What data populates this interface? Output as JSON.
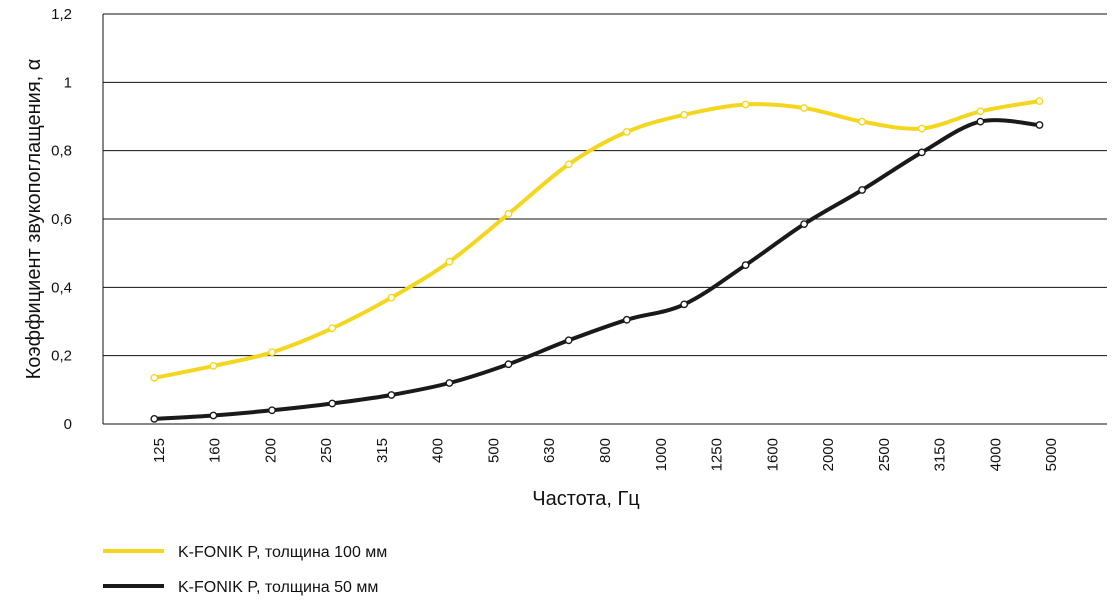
{
  "chart_data": {
    "type": "line",
    "ylabel": "Коэффициент звукопоглащения, α",
    "xlabel": "Частота, Гц",
    "categories": [
      "125",
      "160",
      "200",
      "250",
      "315",
      "400",
      "500",
      "630",
      "800",
      "1000",
      "1250",
      "1600",
      "2000",
      "2500",
      "3150",
      "4000",
      "5000"
    ],
    "ylim": [
      0,
      1.2
    ],
    "yticks": [
      0,
      0.2,
      0.4,
      0.6,
      0.8,
      1,
      1.2
    ],
    "ytick_labels": [
      "0",
      "0,2",
      "0,4",
      "0,6",
      "0,8",
      "1",
      "1,2"
    ],
    "grid": "horizontal",
    "legend_position": "bottom-left",
    "series": [
      {
        "name": "K-FONIK P, толщина 100 мм",
        "color": "#f5d61f",
        "marker_points": [
          {
            "x": 0.92,
            "y": 0.135
          },
          {
            "x": 1.98,
            "y": 0.17
          },
          {
            "x": 3.03,
            "y": 0.21
          },
          {
            "x": 4.11,
            "y": 0.28
          },
          {
            "x": 5.17,
            "y": 0.37
          },
          {
            "x": 6.21,
            "y": 0.475
          },
          {
            "x": 7.27,
            "y": 0.615
          },
          {
            "x": 8.35,
            "y": 0.76
          },
          {
            "x": 9.39,
            "y": 0.855
          },
          {
            "x": 10.42,
            "y": 0.905
          },
          {
            "x": 11.52,
            "y": 0.935
          },
          {
            "x": 12.57,
            "y": 0.925
          },
          {
            "x": 13.61,
            "y": 0.885
          },
          {
            "x": 14.68,
            "y": 0.865
          },
          {
            "x": 15.73,
            "y": 0.915
          },
          {
            "x": 16.79,
            "y": 0.945
          }
        ]
      },
      {
        "name": "K-FONIK P, толщина 50 мм",
        "color": "#1a1a1a",
        "marker_points": [
          {
            "x": 0.92,
            "y": 0.015
          },
          {
            "x": 1.98,
            "y": 0.025
          },
          {
            "x": 3.03,
            "y": 0.04
          },
          {
            "x": 4.11,
            "y": 0.06
          },
          {
            "x": 5.17,
            "y": 0.085
          },
          {
            "x": 6.21,
            "y": 0.12
          },
          {
            "x": 7.27,
            "y": 0.175
          },
          {
            "x": 8.35,
            "y": 0.245
          },
          {
            "x": 9.39,
            "y": 0.305
          },
          {
            "x": 10.42,
            "y": 0.35
          },
          {
            "x": 11.52,
            "y": 0.465
          },
          {
            "x": 12.57,
            "y": 0.585
          },
          {
            "x": 13.61,
            "y": 0.685
          },
          {
            "x": 14.68,
            "y": 0.795
          },
          {
            "x": 15.73,
            "y": 0.885
          },
          {
            "x": 16.79,
            "y": 0.875
          }
        ]
      }
    ]
  }
}
